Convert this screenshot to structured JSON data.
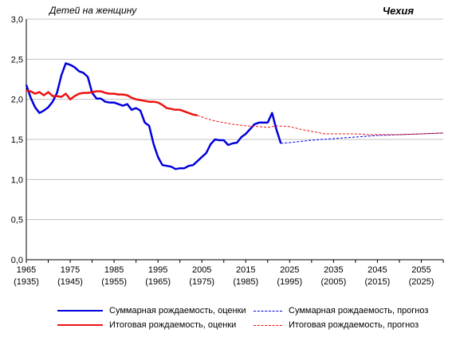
{
  "chart_data": {
    "type": "line",
    "title": "Чехия",
    "ylabel": "Детей на женщину",
    "xlabel": "",
    "xlim": [
      1965,
      2060
    ],
    "ylim": [
      0,
      3
    ],
    "x_ticks": [
      {
        "value": 1965,
        "label": "1965",
        "sublabel": "(1935)"
      },
      {
        "value": 1975,
        "label": "1975",
        "sublabel": "(1945)"
      },
      {
        "value": 1985,
        "label": "1985",
        "sublabel": "(1955)"
      },
      {
        "value": 1995,
        "label": "1995",
        "sublabel": "(1965)"
      },
      {
        "value": 2005,
        "label": "2005",
        "sublabel": "(1975)"
      },
      {
        "value": 2015,
        "label": "2015",
        "sublabel": "(1985)"
      },
      {
        "value": 2025,
        "label": "2025",
        "sublabel": "(1995)"
      },
      {
        "value": 2035,
        "label": "2035",
        "sublabel": "(2005)"
      },
      {
        "value": 2045,
        "label": "2045",
        "sublabel": "(2015)"
      },
      {
        "value": 2055,
        "label": "2055",
        "sublabel": "(2025)"
      }
    ],
    "y_ticks": [
      {
        "value": 0,
        "label": "0,0"
      },
      {
        "value": 0.5,
        "label": "0,5"
      },
      {
        "value": 1.0,
        "label": "1,0"
      },
      {
        "value": 1.5,
        "label": "1,5"
      },
      {
        "value": 2.0,
        "label": "2,0"
      },
      {
        "value": 2.5,
        "label": "2,5"
      },
      {
        "value": 3.0,
        "label": "3,0"
      }
    ],
    "grid": "horizontal",
    "legend_position": "bottom",
    "series": [
      {
        "name": "Суммарная  рождаемость, оценки",
        "color": "#0000dd",
        "style": "solid",
        "points": [
          [
            1965,
            2.18
          ],
          [
            1966,
            2.02
          ],
          [
            1967,
            1.9
          ],
          [
            1968,
            1.83
          ],
          [
            1969,
            1.86
          ],
          [
            1970,
            1.9
          ],
          [
            1971,
            1.97
          ],
          [
            1972,
            2.08
          ],
          [
            1973,
            2.3
          ],
          [
            1974,
            2.45
          ],
          [
            1975,
            2.43
          ],
          [
            1976,
            2.4
          ],
          [
            1977,
            2.35
          ],
          [
            1978,
            2.33
          ],
          [
            1979,
            2.28
          ],
          [
            1980,
            2.08
          ],
          [
            1981,
            2.01
          ],
          [
            1982,
            2.01
          ],
          [
            1983,
            1.97
          ],
          [
            1984,
            1.96
          ],
          [
            1985,
            1.96
          ],
          [
            1986,
            1.94
          ],
          [
            1987,
            1.92
          ],
          [
            1988,
            1.94
          ],
          [
            1989,
            1.87
          ],
          [
            1990,
            1.89
          ],
          [
            1991,
            1.86
          ],
          [
            1992,
            1.71
          ],
          [
            1993,
            1.67
          ],
          [
            1994,
            1.44
          ],
          [
            1995,
            1.28
          ],
          [
            1996,
            1.18
          ],
          [
            1997,
            1.17
          ],
          [
            1998,
            1.16
          ],
          [
            1999,
            1.13
          ],
          [
            2000,
            1.14
          ],
          [
            2001,
            1.14
          ],
          [
            2002,
            1.17
          ],
          [
            2003,
            1.18
          ],
          [
            2004,
            1.23
          ],
          [
            2005,
            1.28
          ],
          [
            2006,
            1.33
          ],
          [
            2007,
            1.44
          ],
          [
            2008,
            1.5
          ],
          [
            2009,
            1.49
          ],
          [
            2010,
            1.49
          ],
          [
            2011,
            1.43
          ],
          [
            2012,
            1.45
          ],
          [
            2013,
            1.46
          ],
          [
            2014,
            1.53
          ],
          [
            2015,
            1.57
          ],
          [
            2016,
            1.63
          ],
          [
            2017,
            1.69
          ],
          [
            2018,
            1.71
          ],
          [
            2019,
            1.71
          ],
          [
            2020,
            1.71
          ],
          [
            2021,
            1.83
          ],
          [
            2022,
            1.62
          ],
          [
            2023,
            1.45
          ]
        ]
      },
      {
        "name": "Итоговая рождаемость, оценки",
        "color": "#ee1111",
        "style": "solid",
        "points": [
          [
            1965,
            2.11
          ],
          [
            1966,
            2.1
          ],
          [
            1967,
            2.07
          ],
          [
            1968,
            2.09
          ],
          [
            1969,
            2.05
          ],
          [
            1970,
            2.09
          ],
          [
            1971,
            2.04
          ],
          [
            1972,
            2.04
          ],
          [
            1973,
            2.03
          ],
          [
            1974,
            2.07
          ],
          [
            1975,
            2.0
          ],
          [
            1976,
            2.04
          ],
          [
            1977,
            2.07
          ],
          [
            1978,
            2.08
          ],
          [
            1979,
            2.08
          ],
          [
            1980,
            2.09
          ],
          [
            1981,
            2.1
          ],
          [
            1982,
            2.1
          ],
          [
            1983,
            2.08
          ],
          [
            1984,
            2.07
          ],
          [
            1985,
            2.07
          ],
          [
            1986,
            2.06
          ],
          [
            1987,
            2.06
          ],
          [
            1988,
            2.05
          ],
          [
            1989,
            2.02
          ],
          [
            1990,
            2.0
          ],
          [
            1991,
            1.99
          ],
          [
            1992,
            1.98
          ],
          [
            1993,
            1.97
          ],
          [
            1994,
            1.97
          ],
          [
            1995,
            1.96
          ],
          [
            1996,
            1.93
          ],
          [
            1997,
            1.89
          ],
          [
            1998,
            1.88
          ],
          [
            1999,
            1.87
          ],
          [
            2000,
            1.87
          ],
          [
            2001,
            1.85
          ],
          [
            2002,
            1.83
          ],
          [
            2003,
            1.81
          ],
          [
            2004,
            1.8
          ]
        ]
      },
      {
        "name": "Суммарная  рождаемость, прогноз",
        "color": "#0000dd",
        "style": "dashed",
        "points": [
          [
            2023,
            1.45
          ],
          [
            2025,
            1.46
          ],
          [
            2030,
            1.49
          ],
          [
            2035,
            1.51
          ],
          [
            2040,
            1.53
          ],
          [
            2045,
            1.55
          ],
          [
            2050,
            1.56
          ],
          [
            2055,
            1.57
          ],
          [
            2060,
            1.58
          ]
        ]
      },
      {
        "name": "Итоговая рождаемость, прогноз",
        "color": "#ee1111",
        "style": "dashed",
        "points": [
          [
            2004,
            1.8
          ],
          [
            2006,
            1.76
          ],
          [
            2008,
            1.73
          ],
          [
            2010,
            1.71
          ],
          [
            2012,
            1.69
          ],
          [
            2015,
            1.67
          ],
          [
            2018,
            1.66
          ],
          [
            2020,
            1.65
          ],
          [
            2022,
            1.67
          ],
          [
            2025,
            1.66
          ],
          [
            2028,
            1.62
          ],
          [
            2030,
            1.6
          ],
          [
            2033,
            1.57
          ],
          [
            2036,
            1.57
          ],
          [
            2040,
            1.57
          ],
          [
            2043,
            1.56
          ],
          [
            2045,
            1.56
          ],
          [
            2050,
            1.56
          ],
          [
            2055,
            1.57
          ],
          [
            2060,
            1.58
          ]
        ]
      }
    ]
  }
}
